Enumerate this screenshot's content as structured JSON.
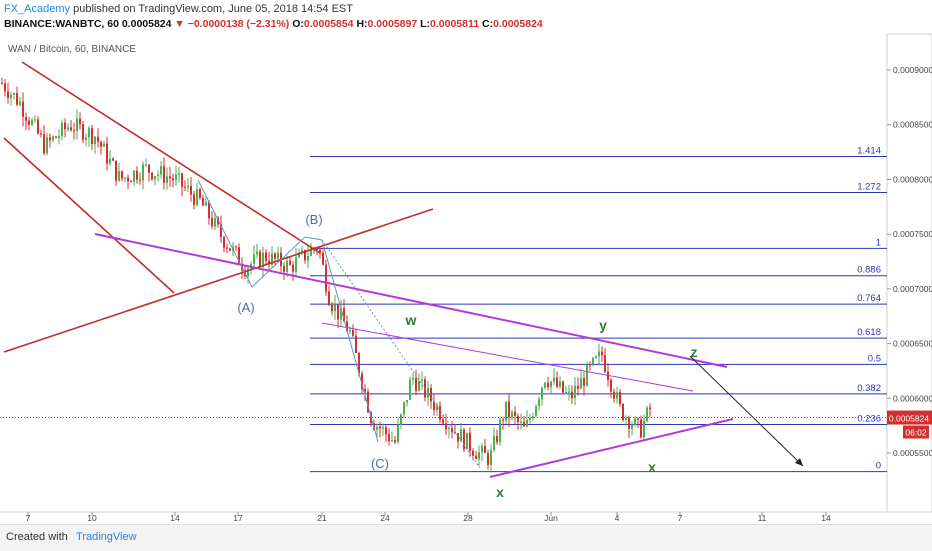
{
  "header": {
    "author": "FX_Academy",
    "published": "published on TradingView.com, June 05, 2018 14:54 EST",
    "symbol": "BINANCE:WANBTC, 60",
    "last": "0.0005824",
    "change": "▼ −0.0000138 (−2.31%)",
    "o_label": "O:",
    "o_value": "0.0005854",
    "h_label": "H:",
    "h_value": "0.0005897",
    "l_label": "L:",
    "l_value": "0.0005811",
    "c_label": "C:",
    "c_value": "0.0005824"
  },
  "footer": {
    "created_with": "Created with",
    "brand": "TradingView"
  },
  "colors": {
    "fib": "#2b36b8",
    "wave_label": "#2e7d32",
    "abc_label": "#4a6fa5",
    "trend_red": "#c62828",
    "trend_purple": "#b23bd6",
    "price_tag": "#d32f2f",
    "candle_up": "#4caf50",
    "candle_down": "#d32f2f"
  },
  "chart_data": {
    "type": "candlestick",
    "title": "WAN / Bitcoin, 60, BINANCE",
    "ylim": [
      0.00053,
      0.00093
    ],
    "grid": false,
    "x_ticks": [
      "7",
      "10",
      "14",
      "17",
      "21",
      "24",
      "28",
      "Jun",
      "4",
      "7",
      "11",
      "14"
    ],
    "y_ticks": [
      "0.0009000",
      "0.0008500",
      "0.0008000",
      "0.0007500",
      "0.0007000",
      "0.0006500",
      "0.0006000",
      "0.0005500"
    ],
    "y_tick_values": [
      0.0009,
      0.00085,
      0.0008,
      0.00075,
      0.0007,
      0.00065,
      0.0006,
      0.00055
    ],
    "last_price": {
      "value": 0.0005824,
      "label": "0.0005824",
      "countdown": "06:02"
    },
    "fib_levels": [
      {
        "ratio": "1.414",
        "price": 0.000821
      },
      {
        "ratio": "1.272",
        "price": 0.000788
      },
      {
        "ratio": "1",
        "price": 0.000737
      },
      {
        "ratio": "0.886",
        "price": 0.000712
      },
      {
        "ratio": "0.764",
        "price": 0.000686
      },
      {
        "ratio": "0.618",
        "price": 0.000655
      },
      {
        "ratio": "0.5",
        "price": 0.000631
      },
      {
        "ratio": "0.382",
        "price": 0.000604
      },
      {
        "ratio": "0.236",
        "price": 0.000576
      },
      {
        "ratio": "0",
        "price": 0.000533
      }
    ],
    "wave_labels": [
      "(A)",
      "(B)",
      "(C)",
      "w",
      "x",
      "y",
      "x",
      "z"
    ],
    "candles_approx": "hourly candles: downtrend from ~0.00090 (day 7) to ~0.00072 (day 17-21), drop to ~0.00054 (day 28-29), range 0.00056-0.00066 through Jun 5"
  }
}
